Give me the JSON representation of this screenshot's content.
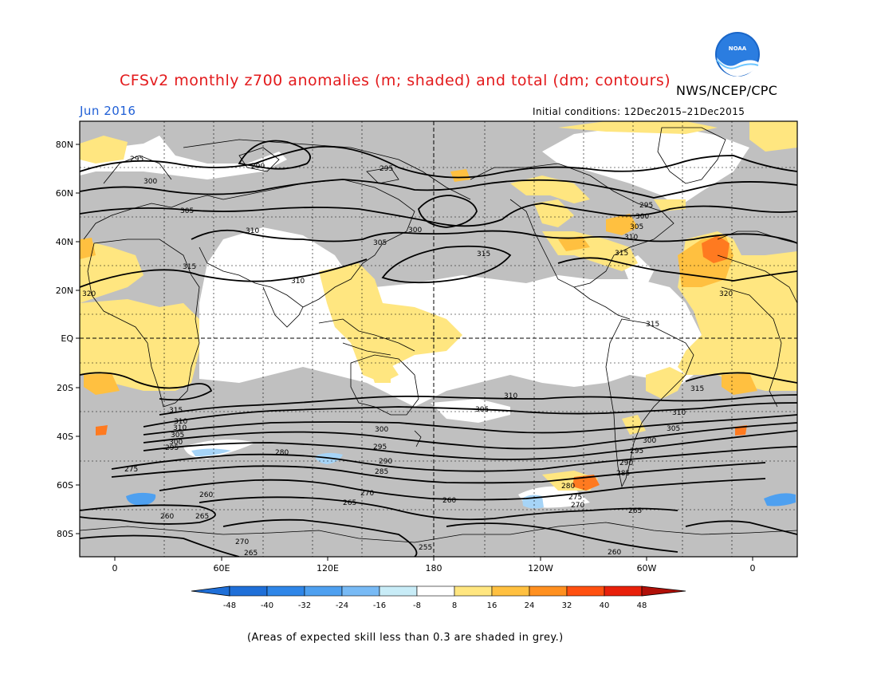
{
  "header": {
    "title": "CFSv2 monthly z700 anomalies (m; shaded) and total (dm; contours)",
    "agency": "NWS/NCEP/CPC",
    "month": "Jun 2016",
    "initial_conditions": "Initial conditions: 12Dec2015–21Dec2015",
    "logo_text": "NOAA"
  },
  "map": {
    "lat_labels": [
      "80N",
      "60N",
      "40N",
      "20N",
      "EQ",
      "20S",
      "40S",
      "60S",
      "80S"
    ],
    "lon_labels": [
      "0",
      "60E",
      "120E",
      "180",
      "120W",
      "60W",
      "0"
    ],
    "contour_labels": [
      {
        "text": "295"
      },
      {
        "text": "290"
      },
      {
        "text": "300"
      },
      {
        "text": "305"
      },
      {
        "text": "295"
      },
      {
        "text": "310"
      },
      {
        "text": "310"
      },
      {
        "text": "305"
      },
      {
        "text": "300"
      },
      {
        "text": "315"
      },
      {
        "text": "315"
      },
      {
        "text": "320"
      },
      {
        "text": "295"
      },
      {
        "text": "300"
      },
      {
        "text": "305"
      },
      {
        "text": "310"
      },
      {
        "text": "315"
      },
      {
        "text": "320"
      },
      {
        "text": "315"
      },
      {
        "text": "315"
      },
      {
        "text": "310"
      },
      {
        "text": "315"
      },
      {
        "text": "310"
      },
      {
        "text": "305"
      },
      {
        "text": "300"
      },
      {
        "text": "295"
      },
      {
        "text": "310"
      },
      {
        "text": "305"
      },
      {
        "text": "300"
      },
      {
        "text": "295"
      },
      {
        "text": "290"
      },
      {
        "text": "285"
      },
      {
        "text": "280"
      },
      {
        "text": "275"
      },
      {
        "text": "270"
      },
      {
        "text": "265"
      },
      {
        "text": "260"
      },
      {
        "text": "255"
      },
      {
        "text": "260"
      },
      {
        "text": "265"
      },
      {
        "text": "270"
      },
      {
        "text": "265"
      },
      {
        "text": "260"
      },
      {
        "text": "265"
      },
      {
        "text": "270"
      },
      {
        "text": "275"
      },
      {
        "text": "280"
      },
      {
        "text": "285"
      },
      {
        "text": "290"
      },
      {
        "text": "295"
      },
      {
        "text": "300"
      },
      {
        "text": "305"
      },
      {
        "text": "310"
      },
      {
        "text": "260"
      }
    ]
  },
  "colorbar": {
    "ticks": [
      "-48",
      "-40",
      "-32",
      "-24",
      "-16",
      "-8",
      "8",
      "16",
      "24",
      "32",
      "40",
      "48"
    ],
    "colors": [
      "#1f6fd8",
      "#2f86e8",
      "#4ea0f0",
      "#78baf5",
      "#a6d4f7",
      "#c8ecf7",
      "#ffffff",
      "#ffe680",
      "#ffc040",
      "#ff9020",
      "#ff5010",
      "#e8200a",
      "#c01008",
      "#a00808"
    ]
  },
  "colors": {
    "skill_grey": "#c0c0c0",
    "title_red": "#e31a1c",
    "month_blue": "#1f5fd6",
    "pos_anom": "#ffe680",
    "pos_anom2": "#ffc040",
    "pos_anom3": "#ff7a20"
  },
  "footnote": "(Areas of expected skill less than 0.3 are shaded in grey.)"
}
